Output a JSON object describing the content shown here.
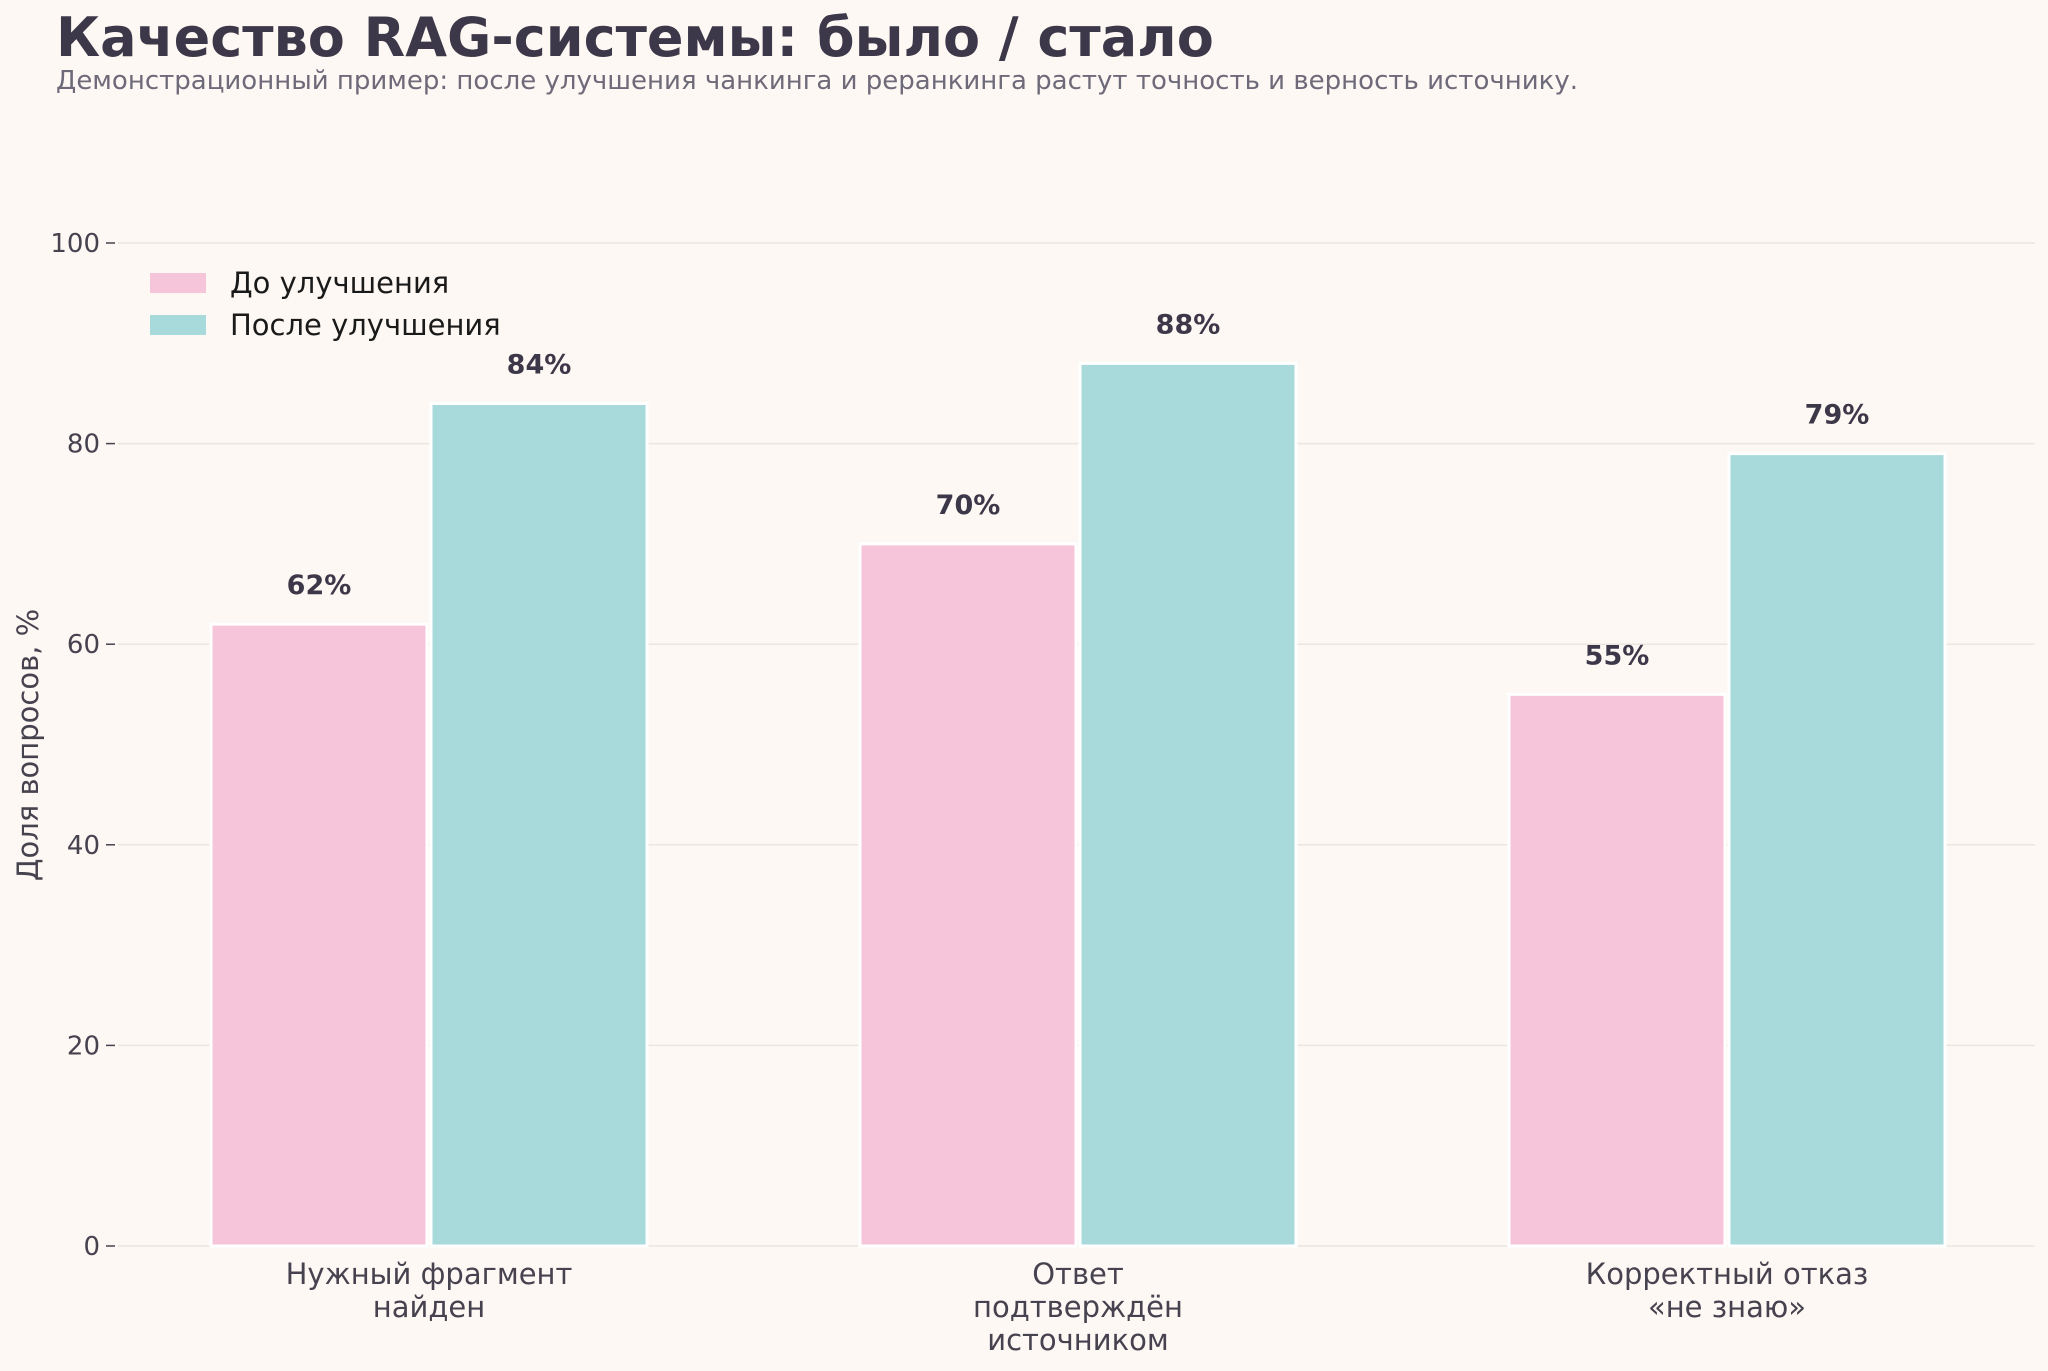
{
  "chart_data": {
    "type": "bar",
    "title": "Качество RAG-системы: было / стало",
    "subtitle": "Демонстрационный пример: после улучшения чанкинга и реранкинга растут точность и верность источнику.",
    "ylabel": "Доля вопросов, %",
    "xlabel": "",
    "ylim": [
      0,
      100
    ],
    "yticks": [
      0,
      20,
      40,
      60,
      80,
      100
    ],
    "grid": true,
    "legend_position": "top-left",
    "categories": [
      [
        "Нужный фрагмент",
        "найден"
      ],
      [
        "Ответ",
        "подтверждён",
        "источником"
      ],
      [
        "Корректный отказ",
        "«не знаю»"
      ]
    ],
    "series": [
      {
        "name": "До улучшения",
        "color": "#f7c5d9",
        "values": [
          62,
          70,
          55
        ],
        "labels": [
          "62%",
          "70%",
          "55%"
        ]
      },
      {
        "name": "После улучшения",
        "color": "#a8dadc",
        "values": [
          84,
          88,
          79
        ],
        "labels": [
          "84%",
          "88%",
          "79%"
        ]
      }
    ]
  }
}
